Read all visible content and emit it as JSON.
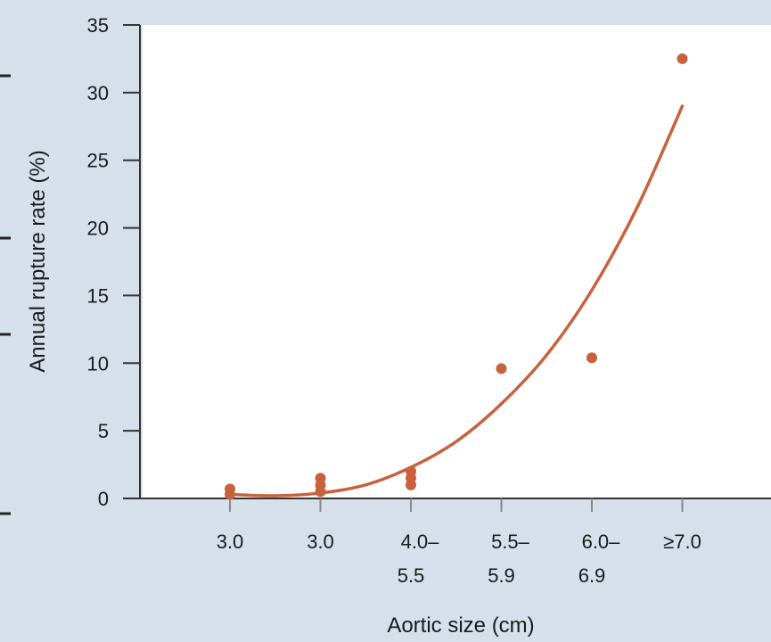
{
  "chart_data": {
    "type": "scatter",
    "title": "",
    "xlabel": "Aortic size (cm)",
    "ylabel": "Annual rupture rate (%)",
    "ylim": [
      0,
      35
    ],
    "yticks": [
      0,
      5,
      10,
      15,
      20,
      25,
      30,
      35
    ],
    "grid": false,
    "categories": [
      [
        "3.0"
      ],
      [
        "3.0"
      ],
      [
        "4.0–",
        "5.5"
      ],
      [
        "5.5–",
        "5.9"
      ],
      [
        "6.0–",
        "6.9"
      ],
      [
        "≥7.0"
      ]
    ],
    "series": [
      {
        "kind": "points",
        "points": [
          {
            "category": 0,
            "value": 0.3
          },
          {
            "category": 0,
            "value": 0.7
          },
          {
            "category": 1,
            "value": 0.5
          },
          {
            "category": 1,
            "value": 1.0
          },
          {
            "category": 1,
            "value": 1.5
          },
          {
            "category": 2,
            "value": 1.0
          },
          {
            "category": 2,
            "value": 1.5
          },
          {
            "category": 2,
            "value": 2.0
          },
          {
            "category": 3,
            "value": 9.6
          },
          {
            "category": 4,
            "value": 10.4
          },
          {
            "category": 5,
            "value": 32.5
          }
        ]
      },
      {
        "kind": "trend",
        "points": [
          {
            "category": 0,
            "value": 0.3
          },
          {
            "category": 0.5,
            "value": 0.2
          },
          {
            "category": 1,
            "value": 0.4
          },
          {
            "category": 1.5,
            "value": 1.0
          },
          {
            "category": 2,
            "value": 2.3
          },
          {
            "category": 2.5,
            "value": 4.2
          },
          {
            "category": 3,
            "value": 7.0
          },
          {
            "category": 3.5,
            "value": 10.6
          },
          {
            "category": 4,
            "value": 15.4
          },
          {
            "category": 4.5,
            "value": 21.5
          },
          {
            "category": 5,
            "value": 29.0
          }
        ]
      }
    ],
    "colors": {
      "background": "#d5e0ea",
      "plot_area": "#ffffff",
      "marker": "#c8613e",
      "axis": "#333333",
      "text": "#1a1a1a"
    }
  }
}
